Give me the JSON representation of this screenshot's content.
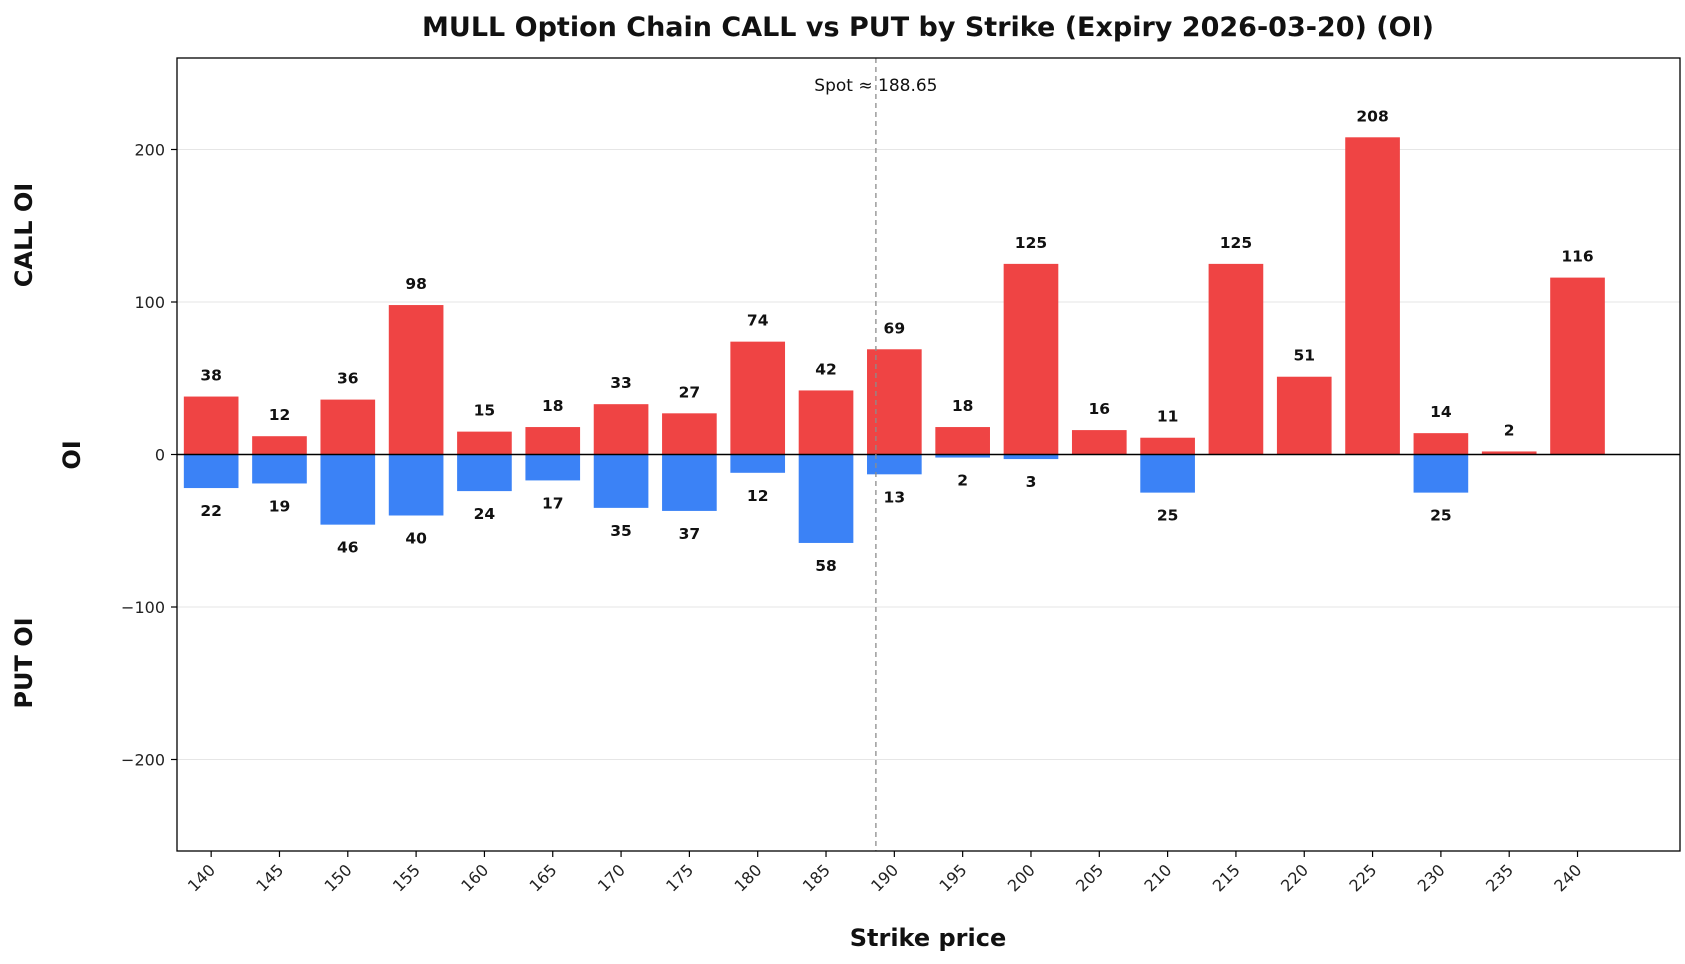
{
  "chart_data": {
    "type": "bar",
    "title": "MULL Option Chain CALL vs PUT by Strike (Expiry 2026-03-20) (OI)",
    "xlabel": "Strike price",
    "ylabel": "OI",
    "ylabel_top": "CALL OI",
    "ylabel_bottom": "PUT OI",
    "categories": [
      "140",
      "145",
      "150",
      "155",
      "160",
      "165",
      "170",
      "175",
      "180",
      "185",
      "190",
      "195",
      "200",
      "205",
      "210",
      "215",
      "220",
      "225",
      "230",
      "235",
      "240"
    ],
    "series": [
      {
        "name": "CALL",
        "color": "#ef4444",
        "values": [
          38,
          12,
          36,
          98,
          15,
          18,
          33,
          27,
          74,
          42,
          69,
          18,
          125,
          16,
          11,
          125,
          51,
          208,
          14,
          2,
          116
        ]
      },
      {
        "name": "PUT",
        "color": "#3b82f6",
        "values": [
          22,
          19,
          46,
          40,
          24,
          17,
          35,
          37,
          12,
          58,
          13,
          2,
          3,
          0,
          25,
          0,
          0,
          0,
          25,
          0,
          0
        ]
      }
    ],
    "ylim": [
      -260,
      260
    ],
    "yticks": [
      -200,
      -100,
      0,
      100,
      200
    ],
    "ytick_labels": [
      "−200",
      "−100",
      "0",
      "100",
      "200"
    ],
    "xlim": [
      137.5,
      247.5
    ],
    "spot": 188.65,
    "spot_label": "Spot ≈ 188.65",
    "grid": true
  }
}
